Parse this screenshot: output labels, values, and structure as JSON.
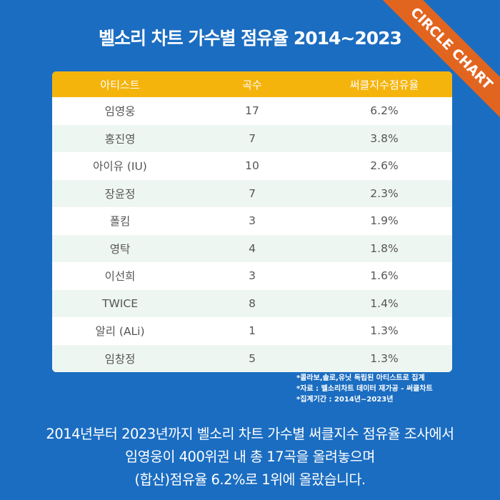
{
  "title": "벨소리 차트 가수별 점유율 2014~2023",
  "ribbon": "CIRCLE CHART",
  "table": {
    "headers": [
      "아티스트",
      "곡수",
      "써클지수점유율"
    ],
    "rows": [
      [
        "임영웅",
        "17",
        "6.2%"
      ],
      [
        "홍진영",
        "7",
        "3.8%"
      ],
      [
        "아이유 (IU)",
        "10",
        "2.6%"
      ],
      [
        "장윤정",
        "7",
        "2.3%"
      ],
      [
        "폴킴",
        "3",
        "1.9%"
      ],
      [
        "영탁",
        "4",
        "1.8%"
      ],
      [
        "이선희",
        "3",
        "1.6%"
      ],
      [
        "TWICE",
        "8",
        "1.4%"
      ],
      [
        "알리 (ALi)",
        "1",
        "1.3%"
      ],
      [
        "임창정",
        "5",
        "1.3%"
      ]
    ]
  },
  "notes": [
    "*콜라보,솔로,유닛 독립된 아티스트로 집계",
    "*자료 : 벨소리차트 데이터  재가공 - 써클차트",
    "*집계기간 : 2014년~2023년"
  ],
  "body": [
    "2014년부터 2023년까지 벨소리 차트 가수별 써클지수 점유율 조사에서",
    "임영웅이 400위권 내 총 17곡을 올려놓으며",
    "(합산)점유율 6.2%로 1위에 올랐습니다."
  ],
  "colors": {
    "background": "#1b6dc1",
    "header": "#f5b40c",
    "ribbon": "#e2651f",
    "row_alt": "#eef6f2"
  }
}
